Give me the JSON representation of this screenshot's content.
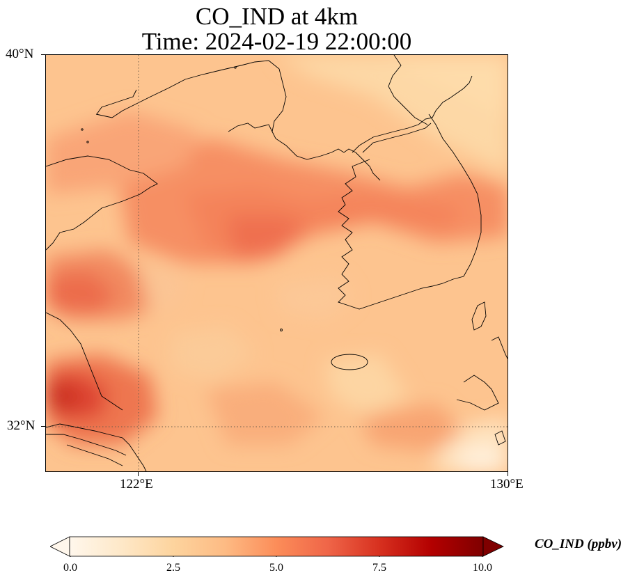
{
  "title_line1": "CO_IND at 4km",
  "title_line2": "Time: 2024-02-19 22:00:00",
  "map": {
    "lat_labels": [
      "40°N",
      "32°N"
    ],
    "lon_labels": [
      "122°E",
      "130°E"
    ],
    "gridline_style": "dotted",
    "coastline_color": "#000000",
    "colormap": "OrRd"
  },
  "colorbar": {
    "label": "CO_IND (ppbv)",
    "ticks": [
      "0.0",
      "2.5",
      "5.0",
      "7.5",
      "10.0"
    ],
    "min": 0.0,
    "max": 10.0,
    "extend": "both",
    "colors": [
      "#fff7ec",
      "#fee8c8",
      "#fdd49e",
      "#fdbb84",
      "#fc8d59",
      "#ef6548",
      "#d7301f",
      "#b30000",
      "#7f0000"
    ]
  }
}
